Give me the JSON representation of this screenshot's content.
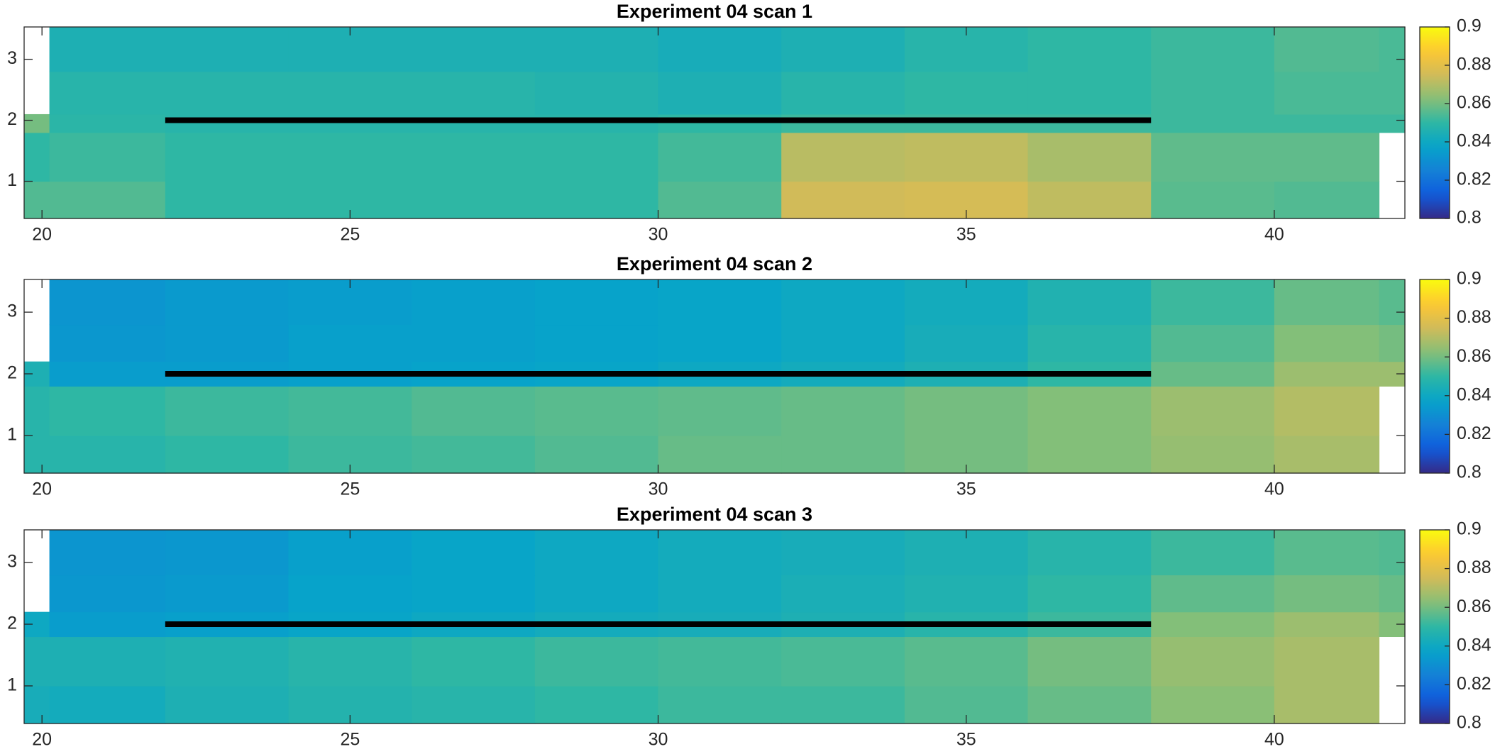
{
  "chart_data": [
    {
      "type": "heatmap",
      "title": "Experiment 04 scan 1",
      "colormap": "parula",
      "xlim": [
        19.71,
        42.12
      ],
      "ylim": [
        0.39,
        3.53
      ],
      "xticks": [
        20,
        25,
        30,
        35,
        40
      ],
      "yticks": [
        1,
        2,
        3
      ],
      "xedges": [
        19.71,
        20.12,
        22,
        24,
        26,
        28,
        30,
        32,
        34,
        36,
        38,
        40,
        41.7,
        42.12
      ],
      "yedges": [
        0.39,
        1,
        1.8,
        2.1,
        2.8,
        3.53
      ],
      "z": [
        [
          0.855,
          0.855,
          0.85,
          0.85,
          0.85,
          0.85,
          0.855,
          0.875,
          0.876,
          0.872,
          0.856,
          0.855,
          null
        ],
        [
          0.85,
          0.852,
          0.85,
          0.85,
          0.85,
          0.85,
          0.853,
          0.871,
          0.872,
          0.868,
          0.857,
          0.857,
          null
        ],
        [
          0.86,
          0.849,
          0.848,
          0.848,
          0.848,
          0.848,
          0.85,
          0.852,
          0.852,
          0.852,
          0.852,
          0.852,
          0.852
        ],
        [
          null,
          0.848,
          0.848,
          0.848,
          0.848,
          0.847,
          0.845,
          0.848,
          0.85,
          0.85,
          0.852,
          0.854,
          0.854
        ],
        [
          null,
          0.845,
          0.845,
          0.845,
          0.845,
          0.845,
          0.843,
          0.845,
          0.848,
          0.85,
          0.852,
          0.855,
          0.854
        ]
      ],
      "clim": [
        0.8,
        0.9
      ],
      "cticks": [
        0.8,
        0.82,
        0.84,
        0.86,
        0.88,
        0.9
      ],
      "line": {
        "x": [
          22,
          38
        ],
        "y": [
          2,
          2
        ],
        "color": "#000000"
      }
    },
    {
      "type": "heatmap",
      "title": "Experiment 04 scan 2",
      "colormap": "parula",
      "xlim": [
        19.71,
        42.12
      ],
      "ylim": [
        0.39,
        3.53
      ],
      "xticks": [
        20,
        25,
        30,
        35,
        40
      ],
      "yticks": [
        1,
        2,
        3
      ],
      "xedges": [
        19.71,
        20.12,
        22,
        24,
        26,
        28,
        30,
        32,
        34,
        36,
        38,
        40,
        41.7,
        42.12
      ],
      "yedges": [
        0.39,
        1,
        1.8,
        2.2,
        2.8,
        3.53
      ],
      "z": [
        [
          0.848,
          0.848,
          0.85,
          0.852,
          0.853,
          0.855,
          0.858,
          0.858,
          0.86,
          0.862,
          0.865,
          0.868,
          null
        ],
        [
          0.848,
          0.85,
          0.852,
          0.853,
          0.855,
          0.856,
          0.857,
          0.858,
          0.86,
          0.862,
          0.866,
          0.87,
          null
        ],
        [
          0.845,
          0.835,
          0.835,
          0.836,
          0.837,
          0.838,
          0.84,
          0.842,
          0.845,
          0.85,
          0.858,
          0.866,
          0.866
        ],
        [
          null,
          0.833,
          0.834,
          0.836,
          0.836,
          0.837,
          0.838,
          0.84,
          0.843,
          0.848,
          0.855,
          0.862,
          0.86
        ],
        [
          null,
          0.832,
          0.834,
          0.835,
          0.836,
          0.837,
          0.838,
          0.84,
          0.842,
          0.846,
          0.852,
          0.858,
          0.856
        ]
      ],
      "clim": [
        0.8,
        0.9
      ],
      "cticks": [
        0.8,
        0.82,
        0.84,
        0.86,
        0.88,
        0.9
      ],
      "line": {
        "x": [
          22,
          38
        ],
        "y": [
          2,
          2
        ],
        "color": "#000000"
      }
    },
    {
      "type": "heatmap",
      "title": "Experiment 04 scan 3",
      "colormap": "parula",
      "xlim": [
        19.71,
        42.12
      ],
      "ylim": [
        0.39,
        3.53
      ],
      "xticks": [
        20,
        25,
        30,
        35,
        40
      ],
      "yticks": [
        1,
        2,
        3
      ],
      "xedges": [
        19.71,
        20.12,
        22,
        24,
        26,
        28,
        30,
        32,
        34,
        36,
        38,
        40,
        41.7,
        42.12
      ],
      "yedges": [
        0.39,
        1,
        1.8,
        2.2,
        2.8,
        3.53
      ],
      "z": [
        [
          0.843,
          0.842,
          0.845,
          0.847,
          0.848,
          0.85,
          0.852,
          0.852,
          0.855,
          0.858,
          0.863,
          0.868,
          null
        ],
        [
          0.845,
          0.845,
          0.846,
          0.848,
          0.85,
          0.852,
          0.853,
          0.854,
          0.856,
          0.86,
          0.865,
          0.868,
          null
        ],
        [
          0.84,
          0.835,
          0.836,
          0.838,
          0.84,
          0.842,
          0.843,
          0.845,
          0.848,
          0.852,
          0.862,
          0.866,
          0.862
        ],
        [
          null,
          0.833,
          0.834,
          0.837,
          0.838,
          0.84,
          0.842,
          0.844,
          0.846,
          0.85,
          0.857,
          0.86,
          0.858
        ],
        [
          null,
          0.832,
          0.833,
          0.836,
          0.838,
          0.84,
          0.842,
          0.843,
          0.845,
          0.848,
          0.852,
          0.856,
          0.855
        ]
      ],
      "clim": [
        0.8,
        0.9
      ],
      "cticks": [
        0.8,
        0.82,
        0.84,
        0.86,
        0.88,
        0.9
      ],
      "line": {
        "x": [
          22,
          38
        ],
        "y": [
          2,
          2
        ],
        "color": "#000000"
      }
    }
  ]
}
